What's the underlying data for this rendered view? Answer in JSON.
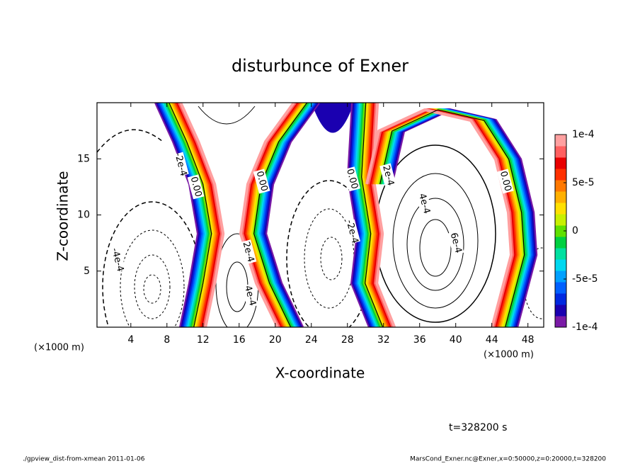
{
  "chart_data": {
    "type": "contour",
    "title": "disturbunce of Exner",
    "x_label": "X-coordinate",
    "y_label": "Z-coordinate",
    "x_unit": "(×1000 m)",
    "y_unit": "(×1000 m)",
    "xlim": [
      0.25,
      49.75
    ],
    "xticks": [
      4,
      8,
      12,
      16,
      20,
      24,
      28,
      32,
      36,
      40,
      44,
      48
    ],
    "ylim": [
      0,
      20
    ],
    "yticks": [
      5,
      10,
      15
    ],
    "colorbar": {
      "lim": [
        -0.0001,
        0.0001
      ],
      "ticks": [
        {
          "value": 0.0001,
          "label": "1e-4"
        },
        {
          "value": 5e-05,
          "label": "5e-5"
        },
        0,
        {
          "value": -5e-05,
          "label": "-5e-5"
        },
        {
          "value": -0.0001,
          "label": "-1e-4"
        }
      ],
      "colors": [
        "#7a1aa6",
        "#1a00b0",
        "#0028e0",
        "#0060ff",
        "#00a0ff",
        "#00d8f0",
        "#00e0a0",
        "#00d040",
        "#60e000",
        "#c8f000",
        "#ffe000",
        "#ffb000",
        "#ff7800",
        "#ff3000",
        "#e80000",
        "#ff6060",
        "#ffa0a0"
      ]
    },
    "contour_labels": [
      {
        "text": "-2e-4",
        "x": 9.5,
        "y": 14.5
      },
      {
        "text": "0.00",
        "x": 11.2,
        "y": 12.5
      },
      {
        "text": "0.00",
        "x": 18.5,
        "y": 13
      },
      {
        "text": "0.00",
        "x": 28.5,
        "y": 13.2
      },
      {
        "text": "2e-4",
        "x": 32.5,
        "y": 13.5
      },
      {
        "text": "4e-4",
        "x": 36.5,
        "y": 11
      },
      {
        "text": "0.00",
        "x": 45.5,
        "y": 13
      },
      {
        "text": "-4e-4",
        "x": 2.5,
        "y": 6
      },
      {
        "text": "2e-4",
        "x": 17,
        "y": 6.7
      },
      {
        "text": "-2e-4",
        "x": 28.5,
        "y": 8.5
      },
      {
        "text": "6e-4",
        "x": 40,
        "y": 7.5
      },
      {
        "text": "4e-4",
        "x": 17.2,
        "y": 2.8
      }
    ],
    "time_label": "t=328200 s",
    "footer_left": "./gpview_dist-from-xmean  2011-01-06",
    "footer_right": "MarsCond_Exner.nc@Exner,x=0:50000,z=0:20000,t=328200"
  }
}
